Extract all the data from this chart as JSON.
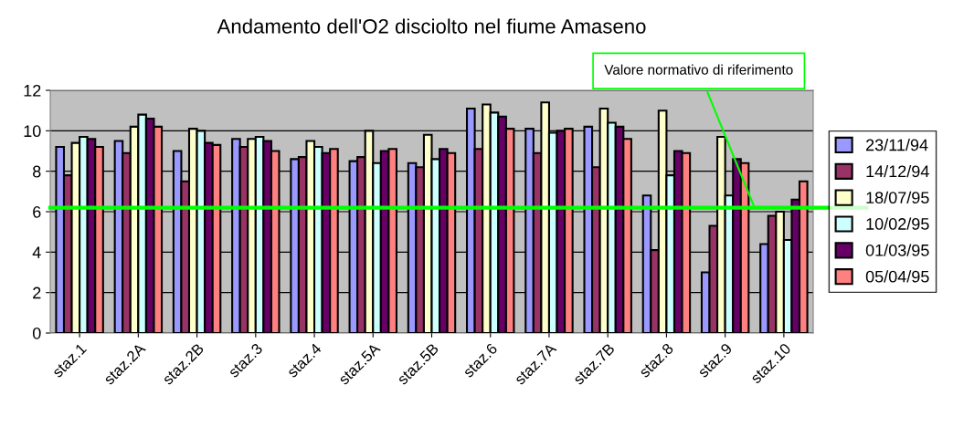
{
  "chart_data": {
    "type": "bar",
    "title": "Andamento dell'O2 disciolto nel fiume Amaseno",
    "categories": [
      "staz.1",
      "staz.2A",
      "staz.2B",
      "staz.3",
      "staz.4",
      "staz.5A",
      "staz.5B",
      "staz.6",
      "staz.7A",
      "staz.7B",
      "staz.8",
      "staz.9",
      "staz.10"
    ],
    "series": [
      {
        "name": "23/11/94",
        "color": "#9999ff",
        "values": [
          9.2,
          9.5,
          9.0,
          9.6,
          8.6,
          8.5,
          8.4,
          11.1,
          10.1,
          10.2,
          6.8,
          3.0,
          4.4
        ]
      },
      {
        "name": "14/12/94",
        "color": "#993366",
        "values": [
          7.8,
          8.9,
          7.5,
          9.2,
          8.7,
          8.7,
          8.2,
          9.1,
          8.9,
          8.2,
          4.1,
          5.3,
          5.8
        ]
      },
      {
        "name": "18/07/95",
        "color": "#ffffcc",
        "values": [
          9.4,
          10.2,
          10.1,
          9.6,
          9.5,
          10.0,
          9.8,
          11.3,
          11.4,
          11.1,
          11.0,
          9.7,
          6.0
        ]
      },
      {
        "name": "10/02/95",
        "color": "#ccffff",
        "values": [
          9.7,
          10.8,
          10.0,
          9.7,
          9.2,
          8.4,
          8.6,
          10.9,
          9.9,
          10.4,
          7.8,
          6.8,
          4.6
        ]
      },
      {
        "name": "01/03/95",
        "color": "#660066",
        "values": [
          9.6,
          10.6,
          9.4,
          9.5,
          8.9,
          9.0,
          9.1,
          10.7,
          10.0,
          10.2,
          9.0,
          8.6,
          6.6
        ]
      },
      {
        "name": "05/04/95",
        "color": "#ff8080",
        "values": [
          9.2,
          10.2,
          9.3,
          9.0,
          9.1,
          9.1,
          8.9,
          10.1,
          10.1,
          9.6,
          8.9,
          8.4,
          7.5
        ]
      }
    ],
    "ylim": [
      0,
      12
    ],
    "yticks": [
      0,
      2,
      4,
      6,
      8,
      10,
      12
    ],
    "grid": "y",
    "legend": "right",
    "ref_lines": [
      {
        "axis": "y",
        "value": 6.2,
        "label": "Valore normativo di riferimento",
        "color": "#00ff00"
      }
    ]
  }
}
